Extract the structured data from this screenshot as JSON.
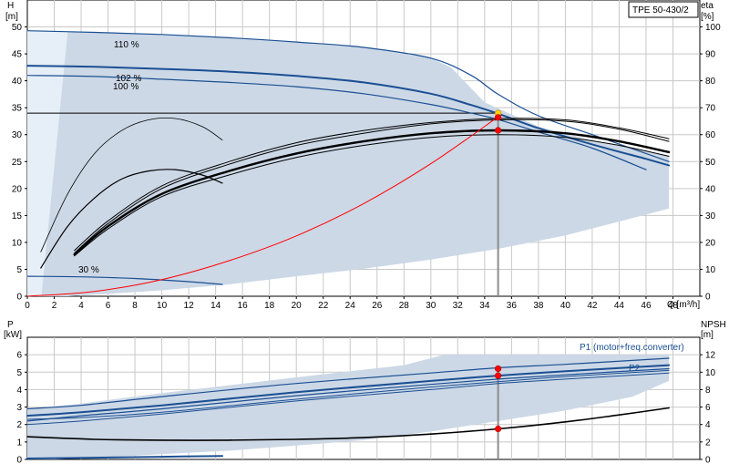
{
  "title_box": "TPE 50-430/2",
  "colors": {
    "region_fill": "#ccd8e6",
    "region_light": "#e6eef7",
    "grid": "#c8c8c8",
    "curve_blue": "#1b4f93",
    "curve_black": "#000000",
    "system_curve": "#ff0000",
    "duty_point": "#ff0000",
    "duty_point_top": "#ffd200"
  },
  "chart_data": [
    {
      "type": "line",
      "panel": "head-eta",
      "left_axis_label": "H",
      "left_axis_unit": "[m]",
      "right_axis_label": "eta",
      "right_axis_unit": "[%]",
      "xlabel": "Q [m³/h]",
      "xlim": [
        0,
        50
      ],
      "ylim_left": [
        0,
        55
      ],
      "ylim_right": [
        0,
        110
      ],
      "x_ticks": [
        0,
        2,
        4,
        6,
        8,
        10,
        12,
        14,
        16,
        18,
        20,
        22,
        24,
        26,
        28,
        30,
        32,
        34,
        36,
        38,
        40,
        42,
        44,
        46,
        48
      ],
      "y_ticks_left": [
        0,
        5,
        10,
        15,
        20,
        25,
        30,
        35,
        40,
        45,
        50
      ],
      "y_ticks_right": [
        0,
        10,
        20,
        30,
        40,
        50,
        60,
        70,
        80,
        90,
        100
      ],
      "grid": true,
      "shaded_region": {
        "upper": [
          [
            0,
            49.3
          ],
          [
            5,
            49
          ],
          [
            10,
            48.6
          ],
          [
            15,
            48
          ],
          [
            20,
            47.2
          ],
          [
            25,
            46.2
          ],
          [
            30,
            44.2
          ],
          [
            31.5,
            42.5
          ],
          [
            34,
            36
          ],
          [
            38,
            31.5
          ],
          [
            42,
            29
          ],
          [
            46,
            27
          ],
          [
            47.7,
            26
          ]
        ],
        "lower": [
          [
            47.7,
            16.3
          ],
          [
            45,
            14.5
          ],
          [
            40,
            11.3
          ],
          [
            35,
            8.8
          ],
          [
            30,
            6.8
          ],
          [
            25,
            5.1
          ],
          [
            20,
            3.7
          ],
          [
            15,
            2.2
          ],
          [
            10,
            1.1
          ],
          [
            5,
            0.3
          ],
          [
            3,
            0
          ]
        ],
        "light_left_x": 3
      },
      "series": [
        {
          "label": "110 %",
          "kind": "head",
          "color": "blue",
          "width": 1.2,
          "x": [
            0,
            5,
            10,
            15,
            20,
            25,
            30,
            33,
            35,
            38,
            42,
            46,
            47.7
          ],
          "y": [
            49.3,
            49,
            48.6,
            48,
            47.2,
            46.2,
            44.2,
            41,
            37.5,
            33.5,
            30,
            26.5,
            25
          ]
        },
        {
          "label": "102 %",
          "kind": "head",
          "color": "blue",
          "width": 2.0,
          "x": [
            0,
            5,
            10,
            15,
            20,
            25,
            30,
            33,
            35,
            38,
            42,
            46,
            47.7
          ],
          "y": [
            42.8,
            42.6,
            42.2,
            41.7,
            40.9,
            39.7,
            37.6,
            35.5,
            33.9,
            31.2,
            28.2,
            25.5,
            24.3
          ]
        },
        {
          "label": "100 %",
          "kind": "head",
          "color": "blue",
          "width": 1.2,
          "x": [
            0,
            5,
            10,
            15,
            20,
            25,
            30,
            33,
            35,
            38,
            42,
            46
          ],
          "y": [
            41,
            40.8,
            40.3,
            39.7,
            38.9,
            37.6,
            35.6,
            34,
            32.8,
            30.5,
            27.5,
            23.5
          ]
        },
        {
          "label": "30 %",
          "kind": "head",
          "color": "blue",
          "width": 1.2,
          "x": [
            0,
            4,
            8,
            12,
            14.5
          ],
          "y": [
            3.7,
            3.6,
            3.3,
            2.7,
            2.2
          ]
        },
        {
          "label": "",
          "kind": "eta",
          "color": "black",
          "width": 0.8,
          "x": [
            1,
            3,
            5,
            7,
            9,
            11,
            13,
            14.5
          ],
          "y": [
            16.5,
            38,
            53,
            61.5,
            65.5,
            66,
            63,
            58
          ]
        },
        {
          "label": "",
          "kind": "eta",
          "color": "black",
          "width": 1.2,
          "x": [
            1,
            3,
            5,
            7,
            9,
            11,
            13,
            14.5
          ],
          "y": [
            10.5,
            26,
            36.5,
            43.5,
            46.5,
            47,
            45,
            42
          ]
        },
        {
          "label": "",
          "kind": "eta",
          "color": "black",
          "width": 1.0,
          "x": [
            3.5,
            6,
            10,
            15,
            20,
            25,
            30,
            35,
            40,
            44,
            47.7
          ],
          "y": [
            17,
            28,
            41,
            50,
            57,
            61.5,
            64.5,
            66,
            65.5,
            62.5,
            58.5
          ]
        },
        {
          "label": "",
          "kind": "eta",
          "color": "black",
          "width": 1.0,
          "x": [
            3.5,
            6,
            10,
            15,
            20,
            25,
            30,
            35,
            40,
            44,
            47.7
          ],
          "y": [
            16,
            27,
            40,
            49,
            56,
            60.5,
            64,
            65.5,
            65,
            62,
            57.5
          ]
        },
        {
          "label": "",
          "kind": "eta",
          "color": "black",
          "width": 2.4,
          "x": [
            3.5,
            6,
            10,
            15,
            20,
            25,
            30,
            35,
            40,
            44,
            47.7
          ],
          "y": [
            15.5,
            26,
            38,
            46.5,
            53,
            57.5,
            60.5,
            61.6,
            60.5,
            57.5,
            53.5
          ]
        },
        {
          "label": "",
          "kind": "eta",
          "color": "black",
          "width": 1.0,
          "x": [
            3.5,
            6,
            10,
            15,
            20,
            25,
            30,
            35,
            40,
            44,
            47.7
          ],
          "y": [
            15,
            25,
            37,
            45,
            51.5,
            56,
            59,
            60,
            59,
            56,
            52
          ]
        },
        {
          "label": "",
          "kind": "system",
          "color": "red",
          "width": 1.0,
          "x": [
            0,
            5,
            10,
            15,
            20,
            25,
            30,
            35
          ],
          "y": [
            0,
            0.9,
            3.1,
            6.6,
            11.2,
            17.2,
            24.6,
            33.3
          ]
        }
      ],
      "reference_line_y": 34,
      "duty_point_x": 35,
      "markers": [
        {
          "x": 35,
          "y_left": 34,
          "color": "yellow"
        },
        {
          "x": 35,
          "y_left": 33.2,
          "color": "red"
        },
        {
          "x": 35,
          "y_left": 30.8,
          "color": "red"
        }
      ],
      "annotations": [
        "110 %",
        "102 %",
        "100 %",
        "30 %"
      ]
    },
    {
      "type": "line",
      "panel": "power-npsh",
      "left_axis_label": "P",
      "left_axis_unit": "[kW]",
      "right_axis_label": "NPSH",
      "right_axis_unit": "[m]",
      "xlim": [
        0,
        50
      ],
      "ylim_left": [
        0,
        7
      ],
      "ylim_right": [
        0,
        14
      ],
      "y_ticks_left": [
        0,
        1,
        2,
        3,
        4,
        5,
        6
      ],
      "y_ticks_right": [
        0,
        2,
        4,
        6,
        8,
        10,
        12
      ],
      "grid": true,
      "shaded_region": {
        "upper": [
          [
            0,
            2.9
          ],
          [
            4,
            3.2
          ],
          [
            10,
            3.8
          ],
          [
            20,
            4.7
          ],
          [
            28,
            5.4
          ],
          [
            31,
            6.0
          ],
          [
            47.7,
            6.0
          ]
        ],
        "lower": [
          [
            47.7,
            4.5
          ],
          [
            45,
            3.6
          ],
          [
            40,
            2.8
          ],
          [
            35,
            2.2
          ],
          [
            30,
            1.6
          ],
          [
            25,
            1.1
          ],
          [
            20,
            0.8
          ],
          [
            15,
            0.5
          ],
          [
            10,
            0.3
          ],
          [
            5,
            0.1
          ],
          [
            2,
            0
          ]
        ]
      },
      "series": [
        {
          "label": "P1 (motor+freq.converter)",
          "kind": "power",
          "color": "blue",
          "width": 1.2,
          "x": [
            0,
            4,
            10,
            20,
            30,
            35,
            40,
            47.7
          ],
          "y": [
            2.9,
            3.1,
            3.6,
            4.35,
            4.95,
            5.25,
            5.45,
            5.8
          ]
        },
        {
          "label": "",
          "kind": "power",
          "color": "blue",
          "width": 2.0,
          "x": [
            0,
            4,
            10,
            20,
            30,
            35,
            40,
            47.7
          ],
          "y": [
            2.5,
            2.7,
            3.1,
            3.85,
            4.5,
            4.8,
            5.05,
            5.4
          ]
        },
        {
          "label": "",
          "kind": "power",
          "color": "blue",
          "width": 1.2,
          "x": [
            0,
            4,
            10,
            20,
            30,
            35,
            40,
            47.7
          ],
          "y": [
            2.2,
            2.5,
            2.9,
            3.65,
            4.3,
            4.6,
            4.85,
            5.2
          ]
        },
        {
          "label": "P2",
          "kind": "power",
          "color": "blue",
          "width": 1.0,
          "x": [
            0,
            4,
            10,
            20,
            30,
            35,
            40,
            47.7
          ],
          "y": [
            2.0,
            2.2,
            2.6,
            3.35,
            4.0,
            4.35,
            4.6,
            4.95
          ]
        },
        {
          "label": "",
          "kind": "power",
          "color": "blue",
          "width": 1.0,
          "x": [
            0,
            4,
            10,
            20,
            30,
            35,
            40,
            47.7
          ],
          "y": [
            2.3,
            2.4,
            2.7,
            3.45,
            4.15,
            4.45,
            4.75,
            5.1
          ]
        },
        {
          "label": "",
          "kind": "power",
          "color": "blue",
          "width": 2.0,
          "x": [
            0,
            5,
            10,
            14.5
          ],
          "y": [
            0.05,
            0.1,
            0.15,
            0.2
          ]
        },
        {
          "label": "",
          "kind": "npsh",
          "color": "black",
          "width": 1.6,
          "x": [
            0,
            5,
            10,
            15,
            20,
            25,
            30,
            35,
            40,
            44,
            47.7
          ],
          "y": [
            2.6,
            2.3,
            2.2,
            2.2,
            2.3,
            2.5,
            2.9,
            3.5,
            4.3,
            5.1,
            5.9
          ]
        }
      ],
      "duty_point_x": 35,
      "markers": [
        {
          "x": 35,
          "y_left": 5.2,
          "color": "red"
        },
        {
          "x": 35,
          "y_left": 4.8,
          "color": "red"
        },
        {
          "x": 35,
          "y_right": 3.5,
          "color": "red"
        }
      ],
      "annotations": [
        "P1 (motor+freq.converter)",
        "P2"
      ]
    }
  ]
}
